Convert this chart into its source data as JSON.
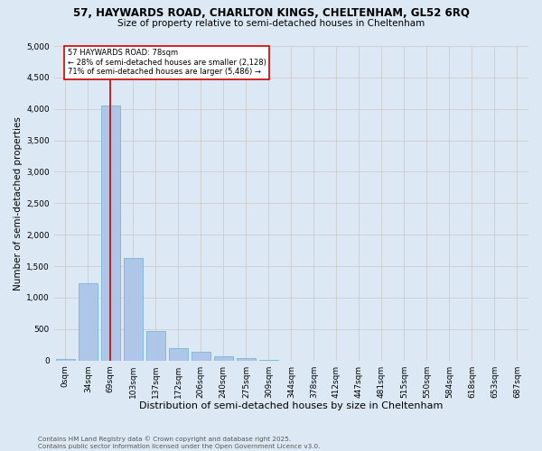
{
  "title_line1": "57, HAYWARDS ROAD, CHARLTON KINGS, CHELTENHAM, GL52 6RQ",
  "title_line2": "Size of property relative to semi-detached houses in Cheltenham",
  "xlabel": "Distribution of semi-detached houses by size in Cheltenham",
  "ylabel": "Number of semi-detached properties",
  "footnote": "Contains HM Land Registry data © Crown copyright and database right 2025.\nContains public sector information licensed under the Open Government Licence v3.0.",
  "bar_labels": [
    "0sqm",
    "34sqm",
    "69sqm",
    "103sqm",
    "137sqm",
    "172sqm",
    "206sqm",
    "240sqm",
    "275sqm",
    "309sqm",
    "344sqm",
    "378sqm",
    "412sqm",
    "447sqm",
    "481sqm",
    "515sqm",
    "550sqm",
    "584sqm",
    "618sqm",
    "653sqm",
    "687sqm"
  ],
  "bar_values": [
    30,
    1230,
    4050,
    1630,
    470,
    200,
    140,
    70,
    40,
    5,
    0,
    0,
    0,
    0,
    0,
    0,
    0,
    0,
    0,
    0,
    0
  ],
  "bar_color": "#aec6e8",
  "bar_edge_color": "#6baed6",
  "ylim": [
    0,
    5000
  ],
  "yticks": [
    0,
    500,
    1000,
    1500,
    2000,
    2500,
    3000,
    3500,
    4000,
    4500,
    5000
  ],
  "property_bin_index": 2,
  "vline_color": "#cc0000",
  "annotation_text": "57 HAYWARDS ROAD: 78sqm\n← 28% of semi-detached houses are smaller (2,128)\n71% of semi-detached houses are larger (5,486) →",
  "annotation_box_color": "#ffffff",
  "annotation_border_color": "#cc0000",
  "grid_color": "#cccccc",
  "background_color": "#dce9f5",
  "plot_bg_color": "#dce9f5"
}
